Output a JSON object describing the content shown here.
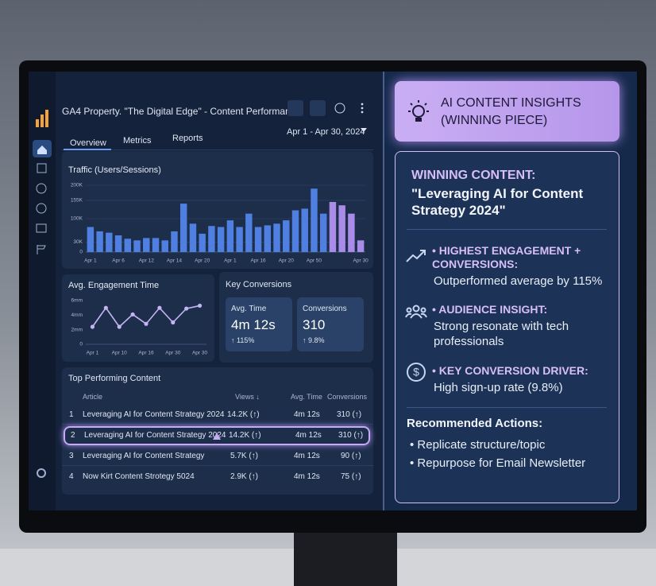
{
  "header": {
    "title": "GA4 Property. \"The Digital Edge\" - Content Performance",
    "tabs": [
      "Overview",
      "Metrics",
      "Reports"
    ],
    "date_range": "Apr 1 - Apr 30, 2024"
  },
  "chart_data": [
    {
      "type": "bar",
      "title": "Traffic (Users/Sessions)",
      "categories": [
        "Apr 1",
        null,
        null,
        "Apr 6",
        null,
        null,
        "Apr 12",
        null,
        null,
        "Apr 14",
        null,
        null,
        "Apr 20",
        null,
        null,
        "Apr 1",
        null,
        null,
        "Apr 16",
        null,
        null,
        "Apr 20",
        null,
        null,
        "Apr 50",
        null,
        null,
        null,
        null,
        "Apr 30"
      ],
      "values": [
        75000,
        62000,
        58000,
        50000,
        40000,
        35000,
        42000,
        42000,
        35000,
        62000,
        145000,
        85000,
        55000,
        78000,
        75000,
        95000,
        75000,
        115000,
        75000,
        80000,
        85000,
        95000,
        125000,
        130000,
        190000,
        115000,
        150000,
        140000,
        115000,
        35000
      ],
      "colors": [
        "#4f7fe0",
        "#4f7fe0",
        "#4f7fe0",
        "#4f7fe0",
        "#4f7fe0",
        "#4f7fe0",
        "#4f7fe0",
        "#4f7fe0",
        "#4f7fe0",
        "#4f7fe0",
        "#4f7fe0",
        "#4f7fe0",
        "#4f7fe0",
        "#4f7fe0",
        "#4f7fe0",
        "#4f7fe0",
        "#4f7fe0",
        "#4f7fe0",
        "#4f7fe0",
        "#4f7fe0",
        "#4f7fe0",
        "#4f7fe0",
        "#4f7fe0",
        "#4f7fe0",
        "#4f7fe0",
        "#4f7fe0",
        "#a98be8",
        "#a98be8",
        "#a98be8",
        "#a98be8"
      ],
      "ylim": [
        0,
        200000
      ],
      "yticks": [
        {
          "value": 200000,
          "label": "200K"
        },
        {
          "value": 155000,
          "label": "155K"
        },
        {
          "value": 100000,
          "label": "100K"
        },
        {
          "value": 30000,
          "label": "30K"
        },
        0
      ],
      "grid": true
    },
    {
      "type": "line",
      "title": "Avg. Engagement Time",
      "categories": [
        "Apr 1",
        null,
        "Apr 10",
        null,
        "Apr 16",
        null,
        "Apr 30",
        null,
        "Apr 30"
      ],
      "values": [
        2.4,
        5,
        2.4,
        4.1,
        2.8,
        5,
        3,
        4.9,
        5.3
      ],
      "color": "#c4b4f4",
      "ylim": [
        0,
        6
      ],
      "yticks": [
        {
          "value": 6,
          "label": "6mm"
        },
        {
          "value": 4,
          "label": "4mm"
        },
        {
          "value": 2,
          "label": "2mm"
        },
        0
      ],
      "grid": false
    }
  ],
  "key_conversions": {
    "title": "Key Conversions",
    "cards": [
      {
        "label": "Avg. Time",
        "value": "4m 12s",
        "change": "↑ 115%"
      },
      {
        "label": "Conversions",
        "value": 310,
        "change": "↑ 9.8%"
      }
    ]
  },
  "table": {
    "title": "Top Performing Content",
    "columns": [
      "Article",
      "Views ↓",
      "Avg. Time",
      "Conversions"
    ],
    "rows": [
      [
        1,
        "Leveraging AI for Content Strategy 2024",
        "14.2K (↑)",
        "4m 12s",
        "310 (↑)"
      ],
      [
        2,
        "Leveraging AI for Content Strategy 2024",
        "14.2K (↑)",
        "4m 12s",
        "310 (↑)"
      ],
      [
        3,
        "Leveraging AI for Content Strategy",
        "5.7K (↑)",
        "4m 12s",
        "90 (↑)"
      ],
      [
        4,
        "Now Kirt Content Strotegy 5024",
        "2.9K (↑)",
        "4m 12s",
        "75 (↑)"
      ]
    ]
  },
  "insights": {
    "title": "AI CONTENT INSIGHTS",
    "subtitle": "(WINNING PIECE)",
    "winning_label": "WINNING CONTENT:",
    "winning_title": "\"Leveraging AI for Content Strategy 2024\"",
    "items": [
      {
        "heading": "• HIGHEST ENGAGEMENT + CONVERSIONS:",
        "text": "Outperformed average by 115%"
      },
      {
        "heading": "• AUDIENCE INSIGHT:",
        "text": "Strong resonate with tech professionals"
      },
      {
        "heading": "• KEY CONVERSION DRIVER:",
        "text": "High sign-up rate (9.8%)"
      }
    ],
    "actions_title": "Recommended Actions:",
    "actions": [
      "• Replicate structure/topic",
      "• Repurpose for Email Newsletter"
    ]
  }
}
